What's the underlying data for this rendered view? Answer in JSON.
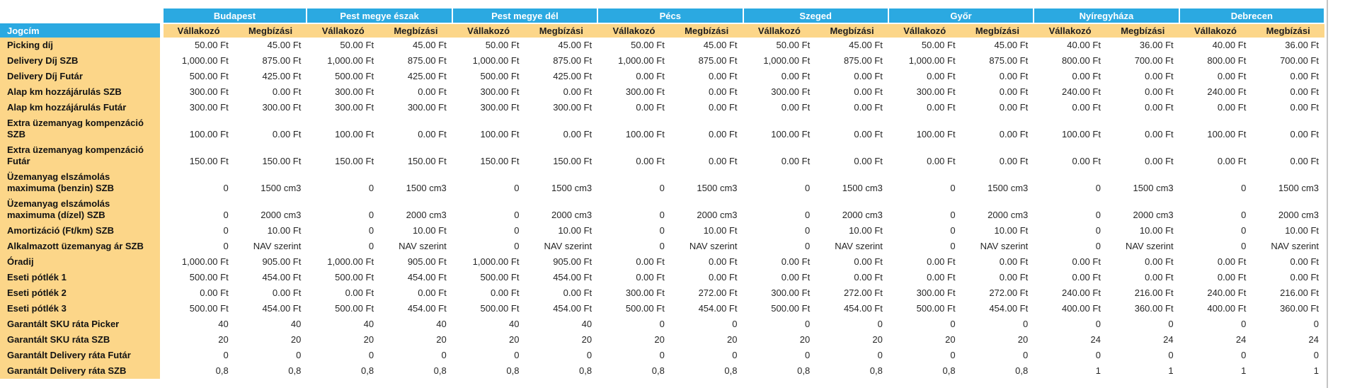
{
  "table": {
    "row_header": "Jogcím",
    "regions": [
      "Budapest",
      "Pest megye észak",
      "Pest megye dél",
      "Pécs",
      "Szeged",
      "Győr",
      "Nyíregyháza",
      "Debrecen"
    ],
    "subheaders": [
      "Vállakozó",
      "Megbízási"
    ],
    "rows": [
      {
        "label": "Picking díj",
        "values": [
          "50.00 Ft",
          "45.00 Ft",
          "50.00 Ft",
          "45.00 Ft",
          "50.00 Ft",
          "45.00 Ft",
          "50.00 Ft",
          "45.00 Ft",
          "50.00 Ft",
          "45.00 Ft",
          "50.00 Ft",
          "45.00 Ft",
          "40.00 Ft",
          "36.00 Ft",
          "40.00 Ft",
          "36.00 Ft"
        ]
      },
      {
        "label": "Delivery Díj SZB",
        "values": [
          "1,000.00 Ft",
          "875.00 Ft",
          "1,000.00 Ft",
          "875.00 Ft",
          "1,000.00 Ft",
          "875.00 Ft",
          "1,000.00 Ft",
          "875.00 Ft",
          "1,000.00 Ft",
          "875.00 Ft",
          "1,000.00 Ft",
          "875.00 Ft",
          "800.00 Ft",
          "700.00 Ft",
          "800.00 Ft",
          "700.00 Ft"
        ]
      },
      {
        "label": "Delivery Díj Futár",
        "values": [
          "500.00 Ft",
          "425.00 Ft",
          "500.00 Ft",
          "425.00 Ft",
          "500.00 Ft",
          "425.00 Ft",
          "0.00 Ft",
          "0.00 Ft",
          "0.00 Ft",
          "0.00 Ft",
          "0.00 Ft",
          "0.00 Ft",
          "0.00 Ft",
          "0.00 Ft",
          "0.00 Ft",
          "0.00 Ft"
        ]
      },
      {
        "label": "Alap km hozzájárulás SZB",
        "values": [
          "300.00 Ft",
          "0.00 Ft",
          "300.00 Ft",
          "0.00 Ft",
          "300.00 Ft",
          "0.00 Ft",
          "300.00 Ft",
          "0.00 Ft",
          "300.00 Ft",
          "0.00 Ft",
          "300.00 Ft",
          "0.00 Ft",
          "240.00 Ft",
          "0.00 Ft",
          "240.00 Ft",
          "0.00 Ft"
        ]
      },
      {
        "label": "Alap km hozzájárulás Futár",
        "values": [
          "300.00 Ft",
          "300.00 Ft",
          "300.00 Ft",
          "300.00 Ft",
          "300.00 Ft",
          "300.00 Ft",
          "0.00 Ft",
          "0.00 Ft",
          "0.00 Ft",
          "0.00 Ft",
          "0.00 Ft",
          "0.00 Ft",
          "0.00 Ft",
          "0.00 Ft",
          "0.00 Ft",
          "0.00 Ft"
        ]
      },
      {
        "label": "Extra üzemanyag kompenzáció\nSZB",
        "values": [
          "100.00 Ft",
          "0.00 Ft",
          "100.00 Ft",
          "0.00 Ft",
          "100.00 Ft",
          "0.00 Ft",
          "100.00 Ft",
          "0.00 Ft",
          "100.00 Ft",
          "0.00 Ft",
          "100.00 Ft",
          "0.00 Ft",
          "100.00 Ft",
          "0.00 Ft",
          "100.00 Ft",
          "0.00 Ft"
        ]
      },
      {
        "label": "Extra üzemanyag kompenzáció\nFutár",
        "values": [
          "150.00 Ft",
          "150.00 Ft",
          "150.00 Ft",
          "150.00 Ft",
          "150.00 Ft",
          "150.00 Ft",
          "0.00 Ft",
          "0.00 Ft",
          "0.00 Ft",
          "0.00 Ft",
          "0.00 Ft",
          "0.00 Ft",
          "0.00 Ft",
          "0.00 Ft",
          "0.00 Ft",
          "0.00 Ft"
        ]
      },
      {
        "label": "Üzemanyag elszámolás\nmaximuma (benzin) SZB",
        "values": [
          "0",
          "1500 cm3",
          "0",
          "1500 cm3",
          "0",
          "1500 cm3",
          "0",
          "1500 cm3",
          "0",
          "1500 cm3",
          "0",
          "1500 cm3",
          "0",
          "1500 cm3",
          "0",
          "1500 cm3"
        ]
      },
      {
        "label": "Üzemanyag elszámolás\nmaximuma (dízel) SZB",
        "values": [
          "0",
          "2000 cm3",
          "0",
          "2000 cm3",
          "0",
          "2000 cm3",
          "0",
          "2000 cm3",
          "0",
          "2000 cm3",
          "0",
          "2000 cm3",
          "0",
          "2000 cm3",
          "0",
          "2000 cm3"
        ]
      },
      {
        "label": "Amortizáció (Ft/km) SZB",
        "values": [
          "0",
          "10.00 Ft",
          "0",
          "10.00 Ft",
          "0",
          "10.00 Ft",
          "0",
          "10.00 Ft",
          "0",
          "10.00 Ft",
          "0",
          "10.00 Ft",
          "0",
          "10.00 Ft",
          "0",
          "10.00 Ft"
        ]
      },
      {
        "label": "Alkalmazott üzemanyag ár SZB",
        "values": [
          "0",
          "NAV szerint",
          "0",
          "NAV szerint",
          "0",
          "NAV szerint",
          "0",
          "NAV szerint",
          "0",
          "NAV szerint",
          "0",
          "NAV szerint",
          "0",
          "NAV szerint",
          "0",
          "NAV szerint"
        ]
      },
      {
        "label": "Óradij",
        "values": [
          "1,000.00 Ft",
          "905.00 Ft",
          "1,000.00 Ft",
          "905.00 Ft",
          "1,000.00 Ft",
          "905.00 Ft",
          "0.00 Ft",
          "0.00 Ft",
          "0.00 Ft",
          "0.00 Ft",
          "0.00 Ft",
          "0.00 Ft",
          "0.00 Ft",
          "0.00 Ft",
          "0.00 Ft",
          "0.00 Ft"
        ]
      },
      {
        "label": "Eseti pótlék 1",
        "values": [
          "500.00 Ft",
          "454.00 Ft",
          "500.00 Ft",
          "454.00 Ft",
          "500.00 Ft",
          "454.00 Ft",
          "0.00 Ft",
          "0.00 Ft",
          "0.00 Ft",
          "0.00 Ft",
          "0.00 Ft",
          "0.00 Ft",
          "0.00 Ft",
          "0.00 Ft",
          "0.00 Ft",
          "0.00 Ft"
        ]
      },
      {
        "label": "Eseti pótlék 2",
        "values": [
          "0.00 Ft",
          "0.00 Ft",
          "0.00 Ft",
          "0.00 Ft",
          "0.00 Ft",
          "0.00 Ft",
          "300.00 Ft",
          "272.00 Ft",
          "300.00 Ft",
          "272.00 Ft",
          "300.00 Ft",
          "272.00 Ft",
          "240.00 Ft",
          "216.00 Ft",
          "240.00 Ft",
          "216.00 Ft"
        ]
      },
      {
        "label": "Eseti pótlék 3",
        "values": [
          "500.00 Ft",
          "454.00 Ft",
          "500.00 Ft",
          "454.00 Ft",
          "500.00 Ft",
          "454.00 Ft",
          "500.00 Ft",
          "454.00 Ft",
          "500.00 Ft",
          "454.00 Ft",
          "500.00 Ft",
          "454.00 Ft",
          "400.00 Ft",
          "360.00 Ft",
          "400.00 Ft",
          "360.00 Ft"
        ]
      },
      {
        "label": "Garantált SKU ráta Picker",
        "values": [
          "40",
          "40",
          "40",
          "40",
          "40",
          "40",
          "0",
          "0",
          "0",
          "0",
          "0",
          "0",
          "0",
          "0",
          "0",
          "0"
        ]
      },
      {
        "label": "Garantált SKU ráta SZB",
        "values": [
          "20",
          "20",
          "20",
          "20",
          "20",
          "20",
          "20",
          "20",
          "20",
          "20",
          "20",
          "20",
          "24",
          "24",
          "24",
          "24"
        ]
      },
      {
        "label": "Garantált Delivery ráta Futár",
        "values": [
          "0",
          "0",
          "0",
          "0",
          "0",
          "0",
          "0",
          "0",
          "0",
          "0",
          "0",
          "0",
          "0",
          "0",
          "0",
          "0"
        ]
      },
      {
        "label": "Garantált Delivery ráta SZB",
        "values": [
          "0,8",
          "0,8",
          "0,8",
          "0,8",
          "0,8",
          "0,8",
          "0,8",
          "0,8",
          "0,8",
          "0,8",
          "0,8",
          "0,8",
          "1",
          "1",
          "1",
          "1"
        ]
      }
    ]
  },
  "colors": {
    "header_blue": "#2BA9E1",
    "band_yellow": "#FCD689",
    "edge_gray": "#C4C4C4"
  }
}
